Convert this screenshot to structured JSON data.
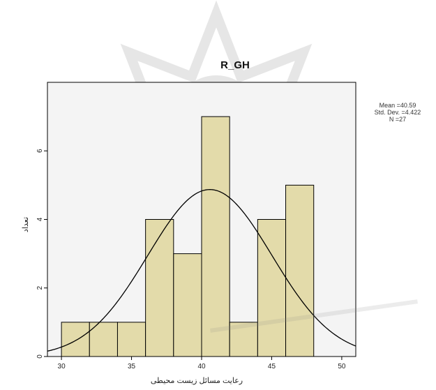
{
  "chart_data": {
    "type": "bar",
    "title": "R_GH",
    "xlabel": "رعایت مسائل زیست محیطی",
    "ylabel": "تعداد",
    "bins": [
      {
        "from": 30,
        "to": 32,
        "count": 1
      },
      {
        "from": 32,
        "to": 34,
        "count": 1
      },
      {
        "from": 34,
        "to": 36,
        "count": 1
      },
      {
        "from": 36,
        "to": 38,
        "count": 4
      },
      {
        "from": 38,
        "to": 40,
        "count": 3
      },
      {
        "from": 40,
        "to": 42,
        "count": 7
      },
      {
        "from": 42,
        "to": 44,
        "count": 1
      },
      {
        "from": 44,
        "to": 46,
        "count": 4
      },
      {
        "from": 46,
        "to": 48,
        "count": 5
      }
    ],
    "xticks": [
      "30",
      "35",
      "40",
      "45",
      "50"
    ],
    "yticks": [
      "0",
      "2",
      "4",
      "6"
    ],
    "xlim": [
      29,
      51
    ],
    "ylim": [
      0,
      8
    ],
    "normal_curve": {
      "mean": 40.59,
      "sd": 4.422,
      "n": 27,
      "bin_width": 2
    },
    "stats": {
      "mean": "Mean =40.59",
      "sd": "Std. Dev. =4.422",
      "n": "N =27"
    },
    "colors": {
      "bar_fill": "#e3dbaa",
      "bar_stroke": "#000000",
      "plot_bg": "#f4f4f4",
      "curve": "#000000"
    },
    "grid": false,
    "legend": "none"
  }
}
